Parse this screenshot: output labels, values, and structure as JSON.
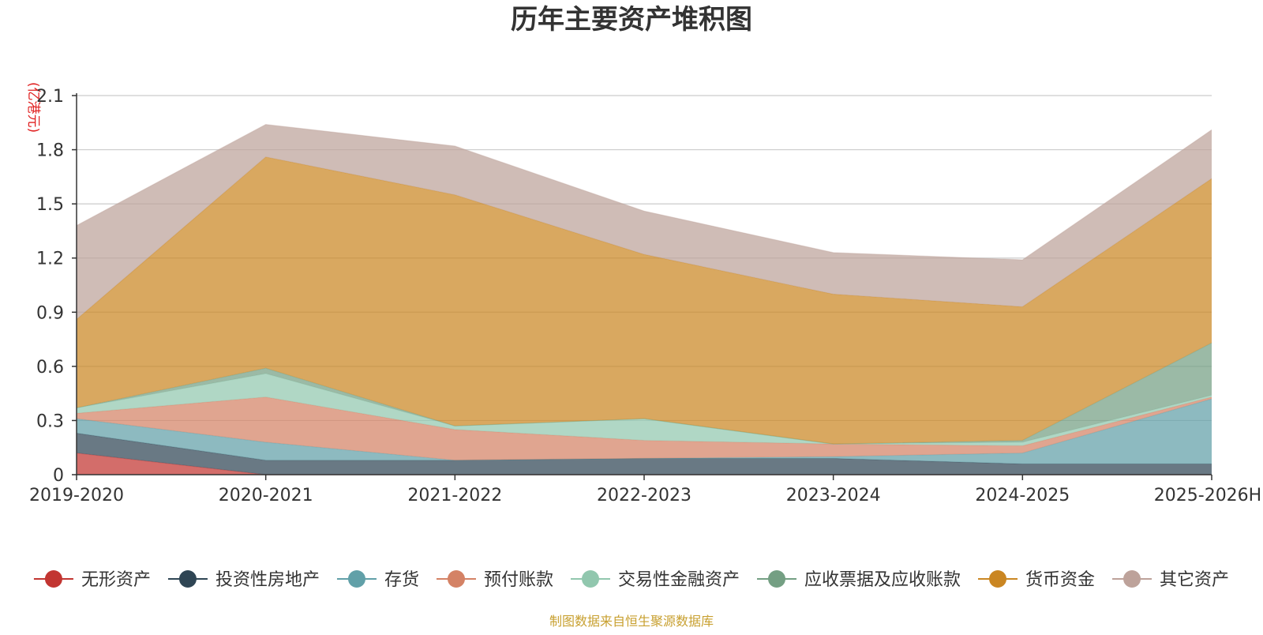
{
  "chart_data": {
    "type": "area",
    "stacked": true,
    "title": "历年主要资产堆积图",
    "unit": "(亿港元)",
    "source": "制图数据来自恒生聚源数据库",
    "ylim": [
      0,
      2.1
    ],
    "yticks": [
      "0",
      "0.3",
      "0.6",
      "0.9",
      "1.2",
      "1.5",
      "1.8",
      "2.1"
    ],
    "categories": [
      "2019-2020",
      "2020-2021",
      "2021-2022",
      "2022-2023",
      "2023-2024",
      "2024-2025",
      "2025-2026H"
    ],
    "series": [
      {
        "name": "无形资产",
        "color": "#c23531",
        "values": [
          0.12,
          0.0,
          0.0,
          0.0,
          0.0,
          0.0,
          0.0
        ]
      },
      {
        "name": "投资性房地产",
        "color": "#2f4554",
        "values": [
          0.11,
          0.08,
          0.08,
          0.09,
          0.09,
          0.06,
          0.06
        ]
      },
      {
        "name": "存货",
        "color": "#61a0a8",
        "values": [
          0.08,
          0.1,
          0.0,
          0.0,
          0.01,
          0.06,
          0.36
        ]
      },
      {
        "name": "预付账款",
        "color": "#d48265",
        "values": [
          0.03,
          0.25,
          0.17,
          0.1,
          0.07,
          0.04,
          0.01
        ]
      },
      {
        "name": "交易性金融资产",
        "color": "#91c7ae",
        "values": [
          0.03,
          0.13,
          0.02,
          0.12,
          0.0,
          0.02,
          0.01
        ]
      },
      {
        "name": "应收票据及应收账款",
        "color": "#749f83",
        "values": [
          0.0,
          0.03,
          0.0,
          0.0,
          0.0,
          0.01,
          0.29
        ]
      },
      {
        "name": "货币资金",
        "color": "#ca8622",
        "values": [
          0.49,
          1.17,
          1.28,
          0.91,
          0.83,
          0.74,
          0.91
        ]
      },
      {
        "name": "其它资产",
        "color": "#bda29a",
        "values": [
          0.52,
          0.18,
          0.27,
          0.24,
          0.23,
          0.26,
          0.27
        ]
      }
    ]
  }
}
